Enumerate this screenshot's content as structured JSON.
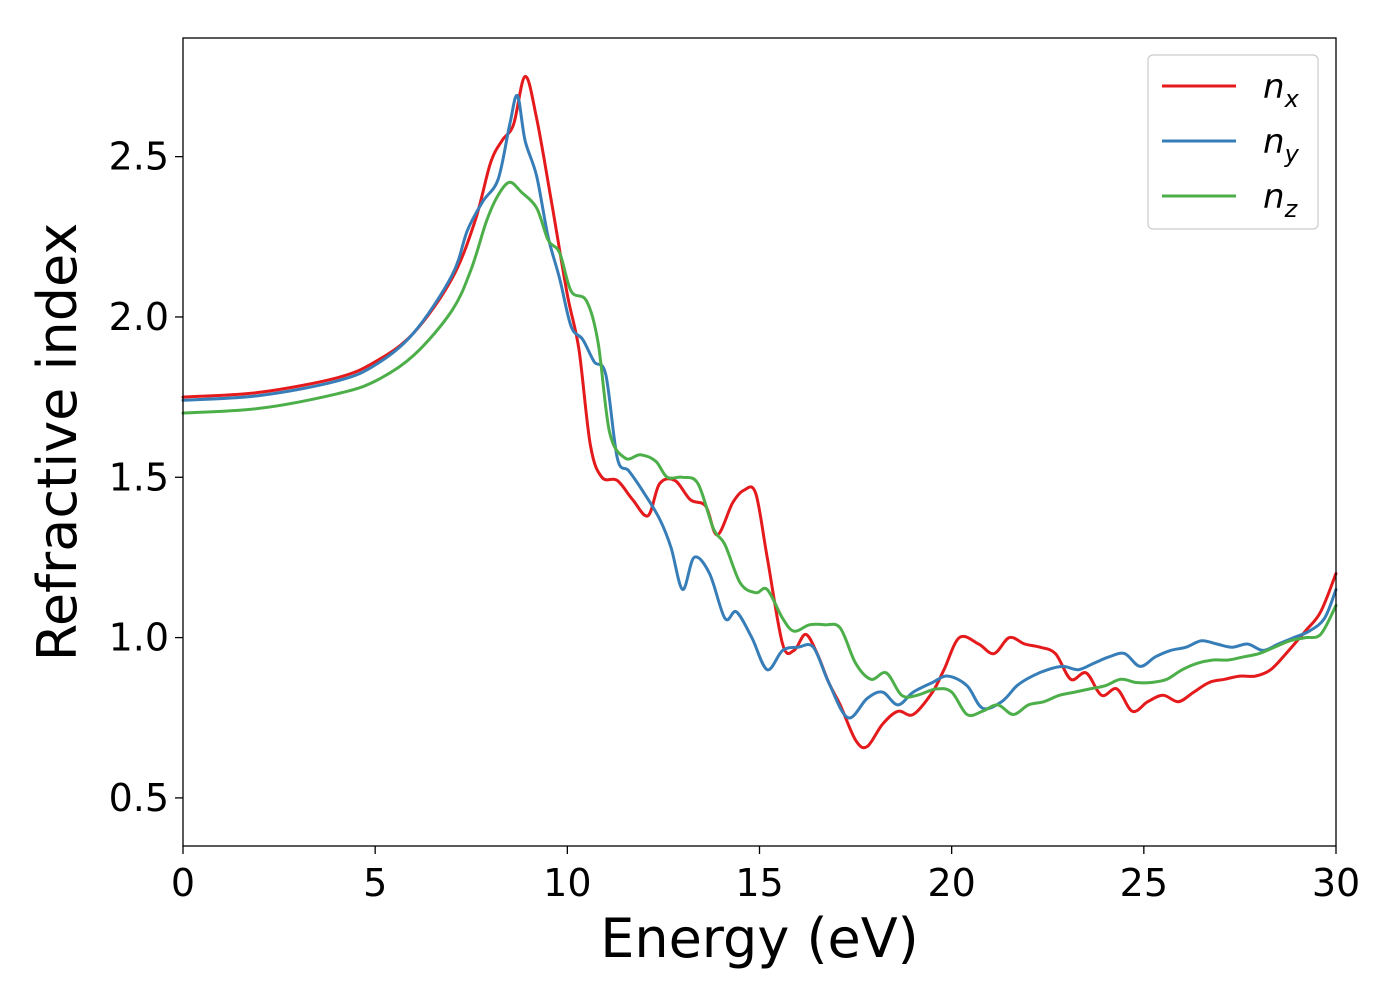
{
  "chart_data": {
    "type": "line",
    "title": "",
    "xlabel": "Energy (eV)",
    "ylabel": "Refractive index",
    "xlim": [
      0,
      30
    ],
    "ylim": [
      0.35,
      2.87
    ],
    "xticks": [
      0,
      5,
      10,
      15,
      20,
      25,
      30
    ],
    "yticks": [
      0.5,
      1.0,
      1.5,
      2.0,
      2.5
    ],
    "xtick_labels": [
      "0",
      "5",
      "10",
      "15",
      "20",
      "25",
      "30"
    ],
    "ytick_labels": [
      "0.5",
      "1.0",
      "1.5",
      "2.0",
      "2.5"
    ],
    "grid": false,
    "legend_position": "top-right",
    "series": [
      {
        "name": "n",
        "subscript": "x",
        "color": "#e41a1c",
        "points": [
          [
            0,
            1.75
          ],
          [
            2,
            1.765
          ],
          [
            4,
            1.81
          ],
          [
            5,
            1.86
          ],
          [
            6,
            1.95
          ],
          [
            7,
            2.12
          ],
          [
            7.6,
            2.3
          ],
          [
            8.0,
            2.48
          ],
          [
            8.3,
            2.55
          ],
          [
            8.6,
            2.6
          ],
          [
            8.9,
            2.75
          ],
          [
            9.2,
            2.62
          ],
          [
            9.6,
            2.35
          ],
          [
            10.0,
            2.07
          ],
          [
            10.3,
            1.9
          ],
          [
            10.6,
            1.6
          ],
          [
            10.9,
            1.5
          ],
          [
            11.3,
            1.49
          ],
          [
            11.7,
            1.43
          ],
          [
            12.1,
            1.38
          ],
          [
            12.4,
            1.48
          ],
          [
            12.8,
            1.49
          ],
          [
            13.2,
            1.43
          ],
          [
            13.6,
            1.41
          ],
          [
            13.9,
            1.32
          ],
          [
            14.3,
            1.42
          ],
          [
            14.6,
            1.46
          ],
          [
            14.9,
            1.45
          ],
          [
            15.2,
            1.25
          ],
          [
            15.6,
            0.98
          ],
          [
            15.9,
            0.96
          ],
          [
            16.2,
            1.01
          ],
          [
            16.5,
            0.95
          ],
          [
            16.8,
            0.86
          ],
          [
            17.1,
            0.79
          ],
          [
            17.5,
            0.68
          ],
          [
            17.8,
            0.66
          ],
          [
            18.2,
            0.73
          ],
          [
            18.6,
            0.77
          ],
          [
            19.0,
            0.76
          ],
          [
            19.5,
            0.83
          ],
          [
            19.8,
            0.9
          ],
          [
            20.2,
            1.0
          ],
          [
            20.7,
            0.98
          ],
          [
            21.1,
            0.95
          ],
          [
            21.5,
            1.0
          ],
          [
            21.9,
            0.98
          ],
          [
            22.3,
            0.97
          ],
          [
            22.7,
            0.95
          ],
          [
            23.1,
            0.87
          ],
          [
            23.5,
            0.89
          ],
          [
            23.9,
            0.82
          ],
          [
            24.3,
            0.84
          ],
          [
            24.7,
            0.77
          ],
          [
            25.1,
            0.8
          ],
          [
            25.5,
            0.82
          ],
          [
            25.9,
            0.8
          ],
          [
            26.3,
            0.83
          ],
          [
            26.7,
            0.86
          ],
          [
            27.1,
            0.87
          ],
          [
            27.5,
            0.88
          ],
          [
            27.9,
            0.88
          ],
          [
            28.3,
            0.9
          ],
          [
            28.7,
            0.95
          ],
          [
            29.2,
            1.02
          ],
          [
            29.6,
            1.08
          ],
          [
            30.0,
            1.2
          ]
        ]
      },
      {
        "name": "n",
        "subscript": "y",
        "color": "#377eb8",
        "points": [
          [
            0,
            1.74
          ],
          [
            2,
            1.755
          ],
          [
            4,
            1.8
          ],
          [
            5,
            1.85
          ],
          [
            6,
            1.95
          ],
          [
            7,
            2.13
          ],
          [
            7.4,
            2.27
          ],
          [
            7.8,
            2.36
          ],
          [
            8.2,
            2.43
          ],
          [
            8.5,
            2.6
          ],
          [
            8.7,
            2.69
          ],
          [
            8.9,
            2.55
          ],
          [
            9.2,
            2.44
          ],
          [
            9.5,
            2.25
          ],
          [
            9.8,
            2.12
          ],
          [
            10.1,
            1.97
          ],
          [
            10.4,
            1.93
          ],
          [
            10.7,
            1.86
          ],
          [
            11.0,
            1.82
          ],
          [
            11.3,
            1.56
          ],
          [
            11.6,
            1.52
          ],
          [
            12.0,
            1.45
          ],
          [
            12.4,
            1.37
          ],
          [
            12.7,
            1.28
          ],
          [
            13.0,
            1.15
          ],
          [
            13.3,
            1.25
          ],
          [
            13.7,
            1.2
          ],
          [
            14.1,
            1.06
          ],
          [
            14.4,
            1.08
          ],
          [
            14.8,
            1.0
          ],
          [
            15.2,
            0.9
          ],
          [
            15.6,
            0.96
          ],
          [
            16.0,
            0.97
          ],
          [
            16.4,
            0.97
          ],
          [
            16.8,
            0.86
          ],
          [
            17.3,
            0.75
          ],
          [
            17.8,
            0.81
          ],
          [
            18.2,
            0.83
          ],
          [
            18.6,
            0.79
          ],
          [
            19.0,
            0.83
          ],
          [
            19.5,
            0.86
          ],
          [
            19.9,
            0.88
          ],
          [
            20.4,
            0.85
          ],
          [
            20.8,
            0.78
          ],
          [
            21.3,
            0.8
          ],
          [
            21.7,
            0.85
          ],
          [
            22.1,
            0.88
          ],
          [
            22.5,
            0.9
          ],
          [
            22.9,
            0.91
          ],
          [
            23.3,
            0.9
          ],
          [
            23.7,
            0.92
          ],
          [
            24.1,
            0.94
          ],
          [
            24.5,
            0.95
          ],
          [
            24.9,
            0.91
          ],
          [
            25.3,
            0.94
          ],
          [
            25.7,
            0.96
          ],
          [
            26.1,
            0.97
          ],
          [
            26.5,
            0.99
          ],
          [
            26.9,
            0.98
          ],
          [
            27.3,
            0.97
          ],
          [
            27.7,
            0.98
          ],
          [
            28.1,
            0.96
          ],
          [
            28.5,
            0.98
          ],
          [
            28.9,
            1.0
          ],
          [
            29.3,
            1.02
          ],
          [
            29.7,
            1.06
          ],
          [
            30.0,
            1.15
          ]
        ]
      },
      {
        "name": "n",
        "subscript": "z",
        "color": "#4daf4a",
        "points": [
          [
            0,
            1.7
          ],
          [
            2,
            1.715
          ],
          [
            4,
            1.76
          ],
          [
            5,
            1.8
          ],
          [
            6,
            1.88
          ],
          [
            7,
            2.02
          ],
          [
            7.5,
            2.15
          ],
          [
            7.9,
            2.3
          ],
          [
            8.2,
            2.38
          ],
          [
            8.5,
            2.42
          ],
          [
            8.8,
            2.39
          ],
          [
            9.2,
            2.34
          ],
          [
            9.5,
            2.24
          ],
          [
            9.8,
            2.2
          ],
          [
            10.1,
            2.08
          ],
          [
            10.5,
            2.05
          ],
          [
            10.8,
            1.92
          ],
          [
            11.1,
            1.64
          ],
          [
            11.5,
            1.56
          ],
          [
            11.9,
            1.57
          ],
          [
            12.3,
            1.55
          ],
          [
            12.6,
            1.5
          ],
          [
            13.0,
            1.5
          ],
          [
            13.4,
            1.48
          ],
          [
            13.8,
            1.34
          ],
          [
            14.1,
            1.29
          ],
          [
            14.5,
            1.17
          ],
          [
            14.9,
            1.14
          ],
          [
            15.2,
            1.15
          ],
          [
            15.6,
            1.06
          ],
          [
            15.9,
            1.02
          ],
          [
            16.3,
            1.04
          ],
          [
            16.7,
            1.04
          ],
          [
            17.1,
            1.03
          ],
          [
            17.5,
            0.92
          ],
          [
            17.9,
            0.87
          ],
          [
            18.3,
            0.89
          ],
          [
            18.7,
            0.82
          ],
          [
            19.1,
            0.82
          ],
          [
            19.6,
            0.84
          ],
          [
            20.0,
            0.83
          ],
          [
            20.4,
            0.76
          ],
          [
            20.8,
            0.77
          ],
          [
            21.2,
            0.79
          ],
          [
            21.6,
            0.76
          ],
          [
            22.0,
            0.79
          ],
          [
            22.4,
            0.8
          ],
          [
            22.8,
            0.82
          ],
          [
            23.2,
            0.83
          ],
          [
            23.6,
            0.84
          ],
          [
            24.0,
            0.85
          ],
          [
            24.4,
            0.87
          ],
          [
            24.8,
            0.86
          ],
          [
            25.2,
            0.86
          ],
          [
            25.6,
            0.87
          ],
          [
            26.0,
            0.9
          ],
          [
            26.4,
            0.92
          ],
          [
            26.8,
            0.93
          ],
          [
            27.2,
            0.93
          ],
          [
            27.6,
            0.94
          ],
          [
            28.0,
            0.95
          ],
          [
            28.4,
            0.97
          ],
          [
            28.8,
            0.99
          ],
          [
            29.2,
            1.0
          ],
          [
            29.6,
            1.01
          ],
          [
            30.0,
            1.1
          ]
        ]
      }
    ]
  }
}
